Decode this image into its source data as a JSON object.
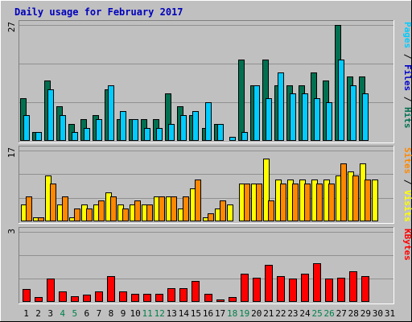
{
  "chart_data": {
    "type": "bar",
    "title": "Daily usage for February 2017",
    "categories": [
      "1",
      "2",
      "3",
      "4",
      "5",
      "6",
      "7",
      "8",
      "9",
      "10",
      "11",
      "12",
      "13",
      "14",
      "15",
      "16",
      "17",
      "18",
      "19",
      "20",
      "21",
      "22",
      "23",
      "24",
      "25",
      "26",
      "27",
      "28",
      "29",
      "30",
      "31"
    ],
    "weekend_categories": [
      "4",
      "5",
      "11",
      "12",
      "18",
      "19",
      "25",
      "26"
    ],
    "colors": {
      "background": "#C0C0C0",
      "title": "#0000BB",
      "hits": "#007050",
      "files": "#00CCFF",
      "pages": "#0000CC",
      "visits": "#FFFF00",
      "sites": "#FF8800",
      "kbytes": "#FF0000",
      "weekday_label": "#000000",
      "weekend_label": "#00804A"
    },
    "panels": [
      {
        "id": "hits",
        "ymax_label": "27",
        "ylim": [
          0,
          27
        ],
        "legend": [
          {
            "name": "Pages",
            "color": "#00CCFF"
          },
          {
            "name": "Files",
            "color": "#0000CC"
          },
          {
            "name": "Hits",
            "color": "#007050"
          }
        ],
        "series": [
          {
            "name": "Hits",
            "color": "#007050",
            "values": [
              10,
              2,
              14,
              8,
              4,
              5,
              6,
              12,
              5,
              5,
              5,
              5,
              11,
              8,
              6,
              3,
              4,
              0,
              19,
              13,
              19,
              13,
              13,
              13,
              16,
              14,
              27,
              15,
              15,
              0,
              0
            ]
          },
          {
            "name": "Files",
            "color": "#00CCFF",
            "values": [
              6,
              2,
              12,
              6,
              2,
              3,
              5,
              13,
              7,
              5,
              3,
              3,
              4,
              6,
              7,
              9,
              4,
              1,
              2,
              13,
              10,
              16,
              11,
              11,
              10,
              9,
              19,
              13,
              11,
              0,
              0
            ]
          },
          {
            "name": "Pages",
            "color": "#0000CC",
            "values": [
              0,
              0,
              0,
              0,
              0,
              0,
              0,
              0,
              0,
              0,
              0,
              0,
              0,
              0,
              0,
              0,
              0,
              0,
              0,
              0,
              0,
              0,
              0,
              0,
              0,
              0,
              0,
              0,
              0,
              0,
              0
            ]
          }
        ]
      },
      {
        "id": "visits",
        "ymax_label": "17",
        "ylim": [
          0,
          17
        ],
        "legend": [
          {
            "name": "Sites",
            "color": "#FF8800"
          },
          {
            "name": "Visits",
            "color": "#FFFF00"
          }
        ],
        "series": [
          {
            "name": "Visits",
            "color": "#FFFF00",
            "values": [
              4,
              1,
              11,
              4,
              1,
              4,
              4,
              7,
              4,
              4,
              4,
              6,
              6,
              3,
              8,
              1,
              3,
              4,
              9,
              9,
              15,
              10,
              10,
              10,
              10,
              10,
              11,
              12,
              14,
              10,
              0
            ]
          },
          {
            "name": "Sites",
            "color": "#FF8800",
            "values": [
              6,
              1,
              9,
              6,
              3,
              3,
              5,
              6,
              3,
              5,
              4,
              6,
              6,
              6,
              10,
              2,
              5,
              0,
              9,
              9,
              5,
              9,
              9,
              9,
              9,
              9,
              14,
              11,
              10,
              0,
              0
            ]
          }
        ]
      },
      {
        "id": "kbytes",
        "ymax_label": "3",
        "ylim": [
          0,
          3
        ],
        "legend": [
          {
            "name": "KBytes",
            "color": "#FF0000"
          }
        ],
        "series": [
          {
            "name": "KBytes",
            "color": "#FF0000",
            "values": [
              0.55,
              0.2,
              1.0,
              0.45,
              0.25,
              0.3,
              0.45,
              1.1,
              0.45,
              0.35,
              0.35,
              0.35,
              0.6,
              0.6,
              0.9,
              0.35,
              0.1,
              0.2,
              1.2,
              1.05,
              1.6,
              1.1,
              1.0,
              1.2,
              1.65,
              1.0,
              1.05,
              1.3,
              1.1,
              0,
              0
            ]
          }
        ]
      }
    ]
  }
}
